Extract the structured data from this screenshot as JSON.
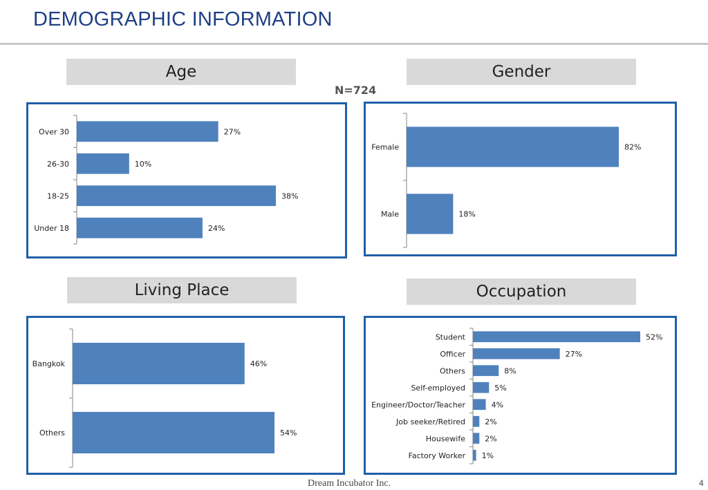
{
  "page": {
    "title": "DEMOGRAPHIC INFORMATION",
    "sample_size": "N=724",
    "footer": "Dream Incubator Inc.",
    "page_number": "4",
    "colors": {
      "bar": "#4f81bd",
      "panel_border": "#1f5fa8",
      "header_bg": "#d9d9d9",
      "title": "#1f3f86"
    }
  },
  "chart_data": [
    {
      "type": "bar",
      "orientation": "horizontal",
      "title": "Age",
      "categories": [
        "Over 30",
        "26-30",
        "18-25",
        "Under 18"
      ],
      "values": [
        27,
        10,
        38,
        24
      ],
      "value_labels": [
        "27%",
        "10%",
        "38%",
        "24%"
      ],
      "xlim": [
        0,
        38
      ]
    },
    {
      "type": "bar",
      "orientation": "horizontal",
      "title": "Gender",
      "categories": [
        "Female",
        "Male"
      ],
      "values": [
        82,
        18
      ],
      "value_labels": [
        "82%",
        "18%"
      ],
      "xlim": [
        0,
        82
      ]
    },
    {
      "type": "bar",
      "orientation": "horizontal",
      "title": "Living Place",
      "categories": [
        "Bangkok",
        "Others"
      ],
      "values": [
        46,
        54
      ],
      "value_labels": [
        "46%",
        "54%"
      ],
      "xlim": [
        0,
        54
      ]
    },
    {
      "type": "bar",
      "orientation": "horizontal",
      "title": "Occupation",
      "categories": [
        "Student",
        "Officer",
        "Others",
        "Self-employed",
        "Engineer/Doctor/Teacher",
        "Job seeker/Retired",
        "Housewife",
        "Factory Worker"
      ],
      "values": [
        52,
        27,
        8,
        5,
        4,
        2,
        2,
        1
      ],
      "value_labels": [
        "52%",
        "27%",
        "8%",
        "5%",
        "4%",
        "2%",
        "2%",
        "1%"
      ],
      "xlim": [
        0,
        52
      ]
    }
  ]
}
